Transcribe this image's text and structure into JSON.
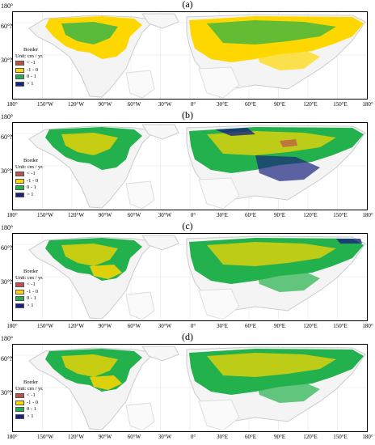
{
  "panels": [
    {
      "label": "(a)"
    },
    {
      "label": "(b)"
    },
    {
      "label": "(c)"
    },
    {
      "label": "(d)"
    }
  ],
  "lat_labels": {
    "top": "180°",
    "sixty": "60°N",
    "thirty": "30°N"
  },
  "lon_labels": [
    "180°",
    "150°W",
    "120°W",
    "90°W",
    "60°W",
    "30°W",
    "0°",
    "30°E",
    "60°E",
    "90°E",
    "120°E",
    "150°E",
    "180°"
  ],
  "legend": {
    "title": "Border",
    "unit": "Unit: cm / yr.",
    "items": [
      {
        "label": "< -1",
        "color": "#c0504d"
      },
      {
        "label": "-1 - 0",
        "color": "#ffd700"
      },
      {
        "label": "0 - 1",
        "color": "#22b14c"
      },
      {
        "label": "> 1",
        "color": "#1a237e"
      }
    ]
  },
  "land_color": "#33aa33",
  "yellow_color": "#f2d200"
}
